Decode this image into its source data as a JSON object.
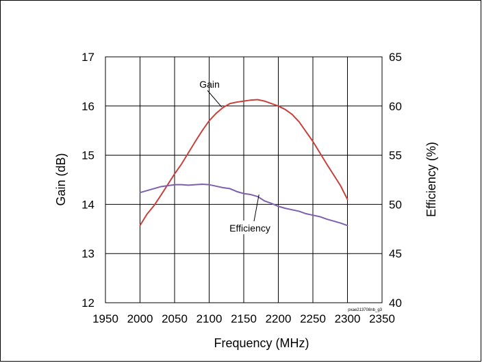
{
  "chart_data": {
    "type": "line",
    "xlabel": "Frequency (MHz)",
    "ylabel": "Gain (dB)",
    "y2label": "Efficiency (%)",
    "xlim": [
      1950,
      2350
    ],
    "ylim": [
      12,
      17
    ],
    "y2lim": [
      40,
      65
    ],
    "x_ticks": [
      "1950",
      "2000",
      "2050",
      "2100",
      "2150",
      "2200",
      "2250",
      "2300",
      "2350"
    ],
    "y_ticks": [
      "12",
      "13",
      "14",
      "15",
      "16",
      "17"
    ],
    "y2_ticks": [
      "40",
      "45",
      "50",
      "55",
      "60",
      "65"
    ],
    "grid": true,
    "series": [
      {
        "name": "Gain",
        "axis": "left",
        "color": "#c8403c",
        "x": [
          2000,
          2010,
          2020,
          2030,
          2040,
          2050,
          2060,
          2070,
          2080,
          2090,
          2100,
          2110,
          2120,
          2130,
          2140,
          2150,
          2160,
          2170,
          2180,
          2190,
          2200,
          2210,
          2220,
          2230,
          2240,
          2250,
          2260,
          2270,
          2280,
          2290,
          2300
        ],
        "y": [
          13.57,
          13.8,
          13.97,
          14.18,
          14.4,
          14.62,
          14.82,
          15.05,
          15.28,
          15.5,
          15.7,
          15.85,
          15.97,
          16.05,
          16.08,
          16.1,
          16.12,
          16.13,
          16.1,
          16.05,
          16.0,
          15.93,
          15.83,
          15.68,
          15.48,
          15.28,
          15.05,
          14.82,
          14.6,
          14.38,
          14.1
        ]
      },
      {
        "name": "Efficiency",
        "axis": "right",
        "color": "#7d5fae",
        "x": [
          2000,
          2010,
          2020,
          2030,
          2040,
          2050,
          2060,
          2070,
          2080,
          2090,
          2100,
          2110,
          2120,
          2130,
          2140,
          2150,
          2160,
          2170,
          2180,
          2190,
          2200,
          2210,
          2220,
          2230,
          2240,
          2250,
          2260,
          2270,
          2280,
          2290,
          2300
        ],
        "y": [
          51.2,
          51.4,
          51.6,
          51.8,
          51.9,
          52.0,
          52.0,
          51.95,
          52.0,
          52.05,
          52.0,
          51.85,
          51.7,
          51.6,
          51.3,
          51.1,
          51.0,
          50.8,
          50.35,
          50.1,
          49.8,
          49.6,
          49.45,
          49.3,
          49.05,
          48.9,
          48.75,
          48.5,
          48.3,
          48.1,
          47.85
        ]
      }
    ],
    "annotations": [
      {
        "text": "Gain",
        "series": "Gain",
        "x": 2118,
        "y": 15.98
      },
      {
        "text": "Efficiency",
        "series": "Efficiency",
        "x": 2172,
        "y": 51.0
      }
    ],
    "footnote": "pxae213708nb_g3"
  }
}
